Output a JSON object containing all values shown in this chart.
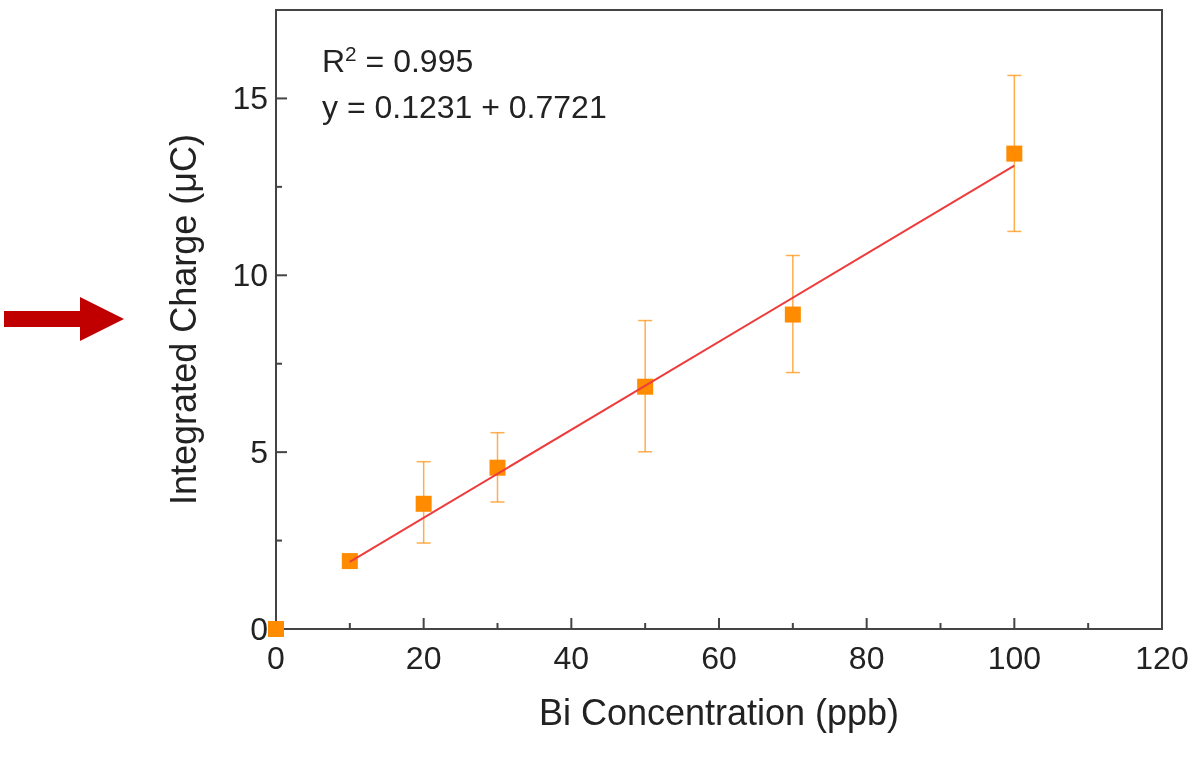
{
  "chart_data": {
    "type": "scatter",
    "xlabel": "Bi Concentration (ppb)",
    "ylabel": "Integrated Charge (μC)",
    "xlim": [
      0,
      120
    ],
    "xticks": [
      0,
      {
        "value": 10,
        "label": null
      },
      20,
      {
        "value": 30,
        "label": null
      },
      40,
      {
        "value": 50,
        "label": null
      },
      60,
      {
        "value": 70,
        "label": null
      },
      80,
      {
        "value": 90,
        "label": null
      },
      100,
      {
        "value": 110,
        "label": null
      },
      120
    ],
    "ylim": [
      0,
      17.5
    ],
    "yticks": [
      0,
      {
        "value": 2.5,
        "label": null
      },
      5,
      {
        "value": 7.5,
        "label": null
      },
      10,
      {
        "value": 12.5,
        "label": null
      },
      15
    ],
    "grid": false,
    "annotations": [
      "R$^{2}$ = 0.995",
      "y = 0.1231 + 0.7721"
    ],
    "series": [
      {
        "color": "#ff8c00",
        "marker": "square",
        "x": [
          0,
          10,
          20,
          30,
          50,
          70,
          100
        ],
        "values": [
          0,
          1.92,
          3.54,
          4.56,
          6.85,
          8.89,
          13.44
        ],
        "errors": [
          null,
          null,
          [
            2.43,
            4.73
          ],
          [
            3.59,
            5.55
          ],
          [
            5.01,
            8.72
          ],
          [
            7.25,
            10.56
          ],
          [
            11.24,
            15.65
          ]
        ]
      },
      {
        "type": "line",
        "color": "#ee3b3b",
        "x": [
          10,
          100
        ],
        "values": [
          1.9,
          13.1
        ],
        "marker": "none"
      }
    ]
  }
}
